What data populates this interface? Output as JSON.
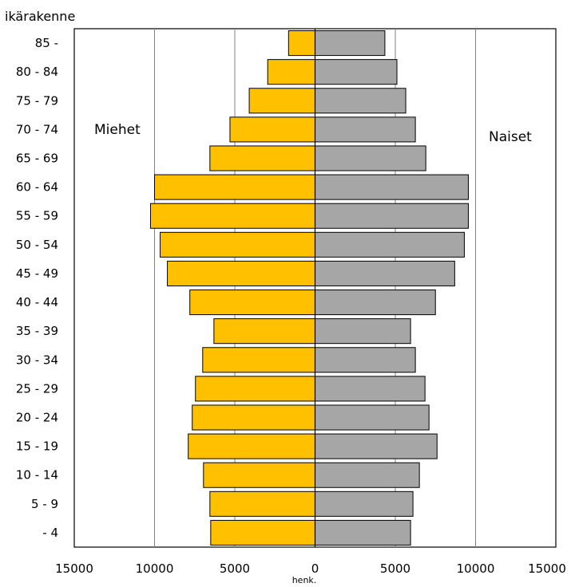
{
  "chart_data": {
    "type": "bar",
    "orientation": "horizontal",
    "layout": "population-pyramid",
    "ylabel": "ikärakenne",
    "xlabel": "henk.",
    "xlim": [
      -15000,
      15000
    ],
    "x_ticks": [
      {
        "value": -15000,
        "label": "15000"
      },
      {
        "value": -10000,
        "label": "10000"
      },
      {
        "value": -5000,
        "label": "5000"
      },
      {
        "value": 0,
        "label": "0"
      },
      {
        "value": 5000,
        "label": "5000"
      },
      {
        "value": 10000,
        "label": "10000"
      },
      {
        "value": 15000,
        "label": "15000"
      }
    ],
    "gridlines_at": [
      -10000,
      -5000,
      5000,
      10000
    ],
    "categories": [
      "85 -",
      "80 - 84",
      "75 - 79",
      "70 - 74",
      "65 - 69",
      "60 - 64",
      "55 - 59",
      "50 - 54",
      "45 - 49",
      "40 - 44",
      "35 - 39",
      "30 - 34",
      "25 - 29",
      "20 - 24",
      "15 - 19",
      "10 - 14",
      "5 - 9",
      "- 4"
    ],
    "series": [
      {
        "name": "Miehet",
        "side": "left",
        "color": "#ffc000",
        "values": [
          1650,
          2950,
          4100,
          5300,
          6550,
          10000,
          10250,
          9650,
          9200,
          7800,
          6300,
          7000,
          7450,
          7650,
          7900,
          6950,
          6550,
          6500
        ]
      },
      {
        "name": "Naiset",
        "side": "right",
        "color": "#a6a6a6",
        "values": [
          4350,
          5100,
          5650,
          6250,
          6900,
          9550,
          9550,
          9300,
          8700,
          7500,
          5950,
          6250,
          6850,
          7100,
          7600,
          6500,
          6100,
          5950
        ]
      }
    ],
    "grid": true,
    "legend": "none"
  }
}
